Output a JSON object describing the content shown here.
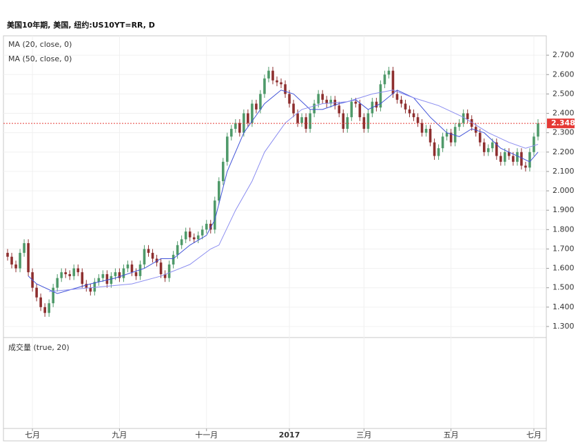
{
  "chart_data": {
    "type": "candlestick",
    "title": "美国10年期, 美国, 纽约:US10YT=RR, D",
    "volume_label": "成交量 (true, 20)",
    "xlim": [
      -1,
      130
    ],
    "xticks": [
      {
        "value": 6,
        "label": "七月"
      },
      {
        "value": 27,
        "label": "九月"
      },
      {
        "value": 48,
        "label": "十一月"
      },
      {
        "value": 68,
        "label": "2017"
      },
      {
        "value": 86,
        "label": "三月"
      },
      {
        "value": 107,
        "label": "五月"
      },
      {
        "value": 127,
        "label": "七月"
      }
    ],
    "ylim": [
      1.243,
      2.8
    ],
    "yticks": [
      {
        "value": 1.3,
        "label": "1.300"
      },
      {
        "value": 1.4,
        "label": "1.400"
      },
      {
        "value": 1.5,
        "label": "1.500"
      },
      {
        "value": 1.6,
        "label": "1.600"
      },
      {
        "value": 1.7,
        "label": "1.700"
      },
      {
        "value": 1.8,
        "label": "1.800"
      },
      {
        "value": 1.9,
        "label": "1.900"
      },
      {
        "value": 2.0,
        "label": "2.000"
      },
      {
        "value": 2.1,
        "label": "2.100"
      },
      {
        "value": 2.2,
        "label": "2.200"
      },
      {
        "value": 2.3,
        "label": "2.300"
      },
      {
        "value": 2.4,
        "label": "2.400"
      },
      {
        "value": 2.5,
        "label": "2.500"
      },
      {
        "value": 2.6,
        "label": "2.600"
      },
      {
        "value": 2.7,
        "label": "2.700"
      }
    ],
    "grid": true,
    "up_color": "#4f9a6a",
    "down_color": "#8e2f2f",
    "open": [
      1.68,
      1.66,
      1.62,
      1.6,
      1.68,
      1.73,
      1.58,
      1.5,
      1.45,
      1.4,
      1.37,
      1.42,
      1.5,
      1.55,
      1.58,
      1.57,
      1.56,
      1.6,
      1.58,
      1.52,
      1.5,
      1.48,
      1.53,
      1.55,
      1.57,
      1.52,
      1.56,
      1.58,
      1.55,
      1.6,
      1.62,
      1.58,
      1.56,
      1.62,
      1.7,
      1.68,
      1.65,
      1.63,
      1.57,
      1.55,
      1.62,
      1.67,
      1.72,
      1.75,
      1.79,
      1.76,
      1.75,
      1.77,
      1.8,
      1.83,
      1.8,
      1.95,
      2.05,
      2.15,
      2.28,
      2.32,
      2.35,
      2.3,
      2.4,
      2.35,
      2.45,
      2.42,
      2.5,
      2.58,
      2.62,
      2.57,
      2.56,
      2.55,
      2.5,
      2.45,
      2.4,
      2.35,
      2.38,
      2.32,
      2.4,
      2.45,
      2.5,
      2.47,
      2.45,
      2.47,
      2.44,
      2.4,
      2.32,
      2.38,
      2.46,
      2.45,
      2.38,
      2.32,
      2.4,
      2.46,
      2.43,
      2.55,
      2.6,
      2.62,
      2.5,
      2.47,
      2.45,
      2.42,
      2.4,
      2.38,
      2.35,
      2.3,
      2.32,
      2.25,
      2.18,
      2.22,
      2.28,
      2.3,
      2.25,
      2.33,
      2.35,
      2.4,
      2.37,
      2.33,
      2.3,
      2.25,
      2.2,
      2.22,
      2.25,
      2.18,
      2.15,
      2.2,
      2.18,
      2.15,
      2.2,
      2.13,
      2.12,
      2.2,
      2.28
    ],
    "high": [
      1.7,
      1.68,
      1.64,
      1.7,
      1.75,
      1.75,
      1.6,
      1.52,
      1.47,
      1.42,
      1.44,
      1.52,
      1.57,
      1.6,
      1.6,
      1.59,
      1.62,
      1.62,
      1.6,
      1.54,
      1.52,
      1.55,
      1.57,
      1.59,
      1.59,
      1.58,
      1.6,
      1.6,
      1.62,
      1.64,
      1.64,
      1.6,
      1.64,
      1.72,
      1.72,
      1.7,
      1.67,
      1.65,
      1.59,
      1.64,
      1.69,
      1.74,
      1.77,
      1.81,
      1.81,
      1.78,
      1.79,
      1.82,
      1.85,
      1.85,
      1.97,
      2.07,
      2.17,
      2.3,
      2.34,
      2.37,
      2.37,
      2.42,
      2.42,
      2.47,
      2.47,
      2.52,
      2.6,
      2.64,
      2.64,
      2.59,
      2.58,
      2.57,
      2.52,
      2.47,
      2.42,
      2.4,
      2.4,
      2.42,
      2.47,
      2.52,
      2.52,
      2.49,
      2.49,
      2.49,
      2.46,
      2.42,
      2.4,
      2.48,
      2.48,
      2.47,
      2.4,
      2.42,
      2.48,
      2.48,
      2.57,
      2.62,
      2.64,
      2.64,
      2.52,
      2.49,
      2.47,
      2.44,
      2.42,
      2.4,
      2.37,
      2.34,
      2.34,
      2.27,
      2.24,
      2.3,
      2.32,
      2.32,
      2.35,
      2.37,
      2.42,
      2.42,
      2.39,
      2.35,
      2.32,
      2.27,
      2.24,
      2.27,
      2.27,
      2.2,
      2.22,
      2.22,
      2.2,
      2.22,
      2.22,
      2.15,
      2.22,
      2.3,
      2.37
    ],
    "low": [
      1.64,
      1.6,
      1.58,
      1.58,
      1.66,
      1.56,
      1.48,
      1.43,
      1.38,
      1.35,
      1.35,
      1.4,
      1.48,
      1.53,
      1.55,
      1.54,
      1.54,
      1.56,
      1.5,
      1.48,
      1.46,
      1.46,
      1.51,
      1.53,
      1.5,
      1.5,
      1.54,
      1.53,
      1.53,
      1.58,
      1.56,
      1.54,
      1.54,
      1.6,
      1.66,
      1.63,
      1.61,
      1.55,
      1.53,
      1.53,
      1.6,
      1.65,
      1.7,
      1.73,
      1.74,
      1.73,
      1.73,
      1.75,
      1.78,
      1.78,
      1.78,
      1.93,
      2.03,
      2.13,
      2.26,
      2.3,
      2.28,
      2.28,
      2.33,
      2.33,
      2.4,
      2.4,
      2.48,
      2.56,
      2.55,
      2.54,
      2.53,
      2.48,
      2.43,
      2.38,
      2.33,
      2.33,
      2.3,
      2.3,
      2.38,
      2.43,
      2.45,
      2.43,
      2.43,
      2.42,
      2.38,
      2.3,
      2.3,
      2.36,
      2.43,
      2.36,
      2.3,
      2.3,
      2.38,
      2.41,
      2.41,
      2.53,
      2.58,
      2.48,
      2.45,
      2.43,
      2.4,
      2.38,
      2.36,
      2.33,
      2.28,
      2.28,
      2.23,
      2.16,
      2.16,
      2.2,
      2.26,
      2.23,
      2.23,
      2.31,
      2.33,
      2.35,
      2.31,
      2.28,
      2.23,
      2.18,
      2.18,
      2.2,
      2.16,
      2.13,
      2.13,
      2.16,
      2.13,
      2.13,
      2.11,
      2.1,
      2.1,
      2.18,
      2.26
    ],
    "close": [
      1.66,
      1.62,
      1.6,
      1.68,
      1.73,
      1.58,
      1.5,
      1.45,
      1.4,
      1.37,
      1.42,
      1.5,
      1.55,
      1.58,
      1.57,
      1.56,
      1.6,
      1.58,
      1.52,
      1.5,
      1.48,
      1.53,
      1.55,
      1.57,
      1.52,
      1.56,
      1.58,
      1.55,
      1.6,
      1.62,
      1.58,
      1.56,
      1.62,
      1.7,
      1.68,
      1.65,
      1.63,
      1.57,
      1.55,
      1.62,
      1.67,
      1.72,
      1.75,
      1.79,
      1.76,
      1.75,
      1.77,
      1.8,
      1.83,
      1.8,
      1.95,
      2.05,
      2.15,
      2.28,
      2.32,
      2.35,
      2.3,
      2.4,
      2.35,
      2.45,
      2.42,
      2.5,
      2.58,
      2.62,
      2.57,
      2.56,
      2.55,
      2.5,
      2.45,
      2.4,
      2.35,
      2.38,
      2.32,
      2.4,
      2.45,
      2.5,
      2.47,
      2.45,
      2.47,
      2.44,
      2.4,
      2.32,
      2.38,
      2.46,
      2.45,
      2.38,
      2.32,
      2.4,
      2.46,
      2.43,
      2.55,
      2.6,
      2.62,
      2.5,
      2.47,
      2.45,
      2.42,
      2.4,
      2.38,
      2.35,
      2.3,
      2.32,
      2.25,
      2.18,
      2.22,
      2.28,
      2.3,
      2.25,
      2.33,
      2.35,
      2.4,
      2.37,
      2.33,
      2.3,
      2.25,
      2.2,
      2.22,
      2.25,
      2.18,
      2.15,
      2.2,
      2.18,
      2.15,
      2.2,
      2.13,
      2.12,
      2.2,
      2.28,
      2.348
    ],
    "series": [
      {
        "name": "MA (20, close, 0)",
        "color": "#3f51d8",
        "x": [
          5,
          7,
          12,
          20,
          26,
          33,
          37,
          40,
          44,
          48,
          50,
          53,
          57,
          62,
          66,
          69,
          73,
          76,
          80,
          84,
          87,
          90,
          94,
          98,
          102,
          106,
          109,
          112,
          115,
          119,
          123,
          126,
          128
        ],
        "values": [
          1.56,
          1.52,
          1.47,
          1.52,
          1.55,
          1.6,
          1.65,
          1.65,
          1.72,
          1.77,
          1.85,
          2.1,
          2.3,
          2.45,
          2.52,
          2.5,
          2.42,
          2.42,
          2.45,
          2.47,
          2.42,
          2.45,
          2.52,
          2.48,
          2.38,
          2.3,
          2.28,
          2.32,
          2.3,
          2.22,
          2.18,
          2.15,
          2.2
        ]
      },
      {
        "name": "MA (50, close, 0)",
        "color": "#8a8cf0",
        "x": [
          10,
          20,
          30,
          37,
          44,
          49,
          51,
          55,
          59,
          62,
          67,
          71,
          76,
          82,
          88,
          93,
          98,
          104,
          110,
          116,
          121,
          125,
          128
        ],
        "values": [
          1.48,
          1.5,
          1.52,
          1.56,
          1.62,
          1.7,
          1.72,
          1.9,
          2.05,
          2.2,
          2.35,
          2.42,
          2.45,
          2.46,
          2.5,
          2.52,
          2.48,
          2.44,
          2.38,
          2.3,
          2.25,
          2.22,
          2.24
        ]
      }
    ],
    "last_price": 2.348,
    "last_price_color": "#e53935"
  }
}
